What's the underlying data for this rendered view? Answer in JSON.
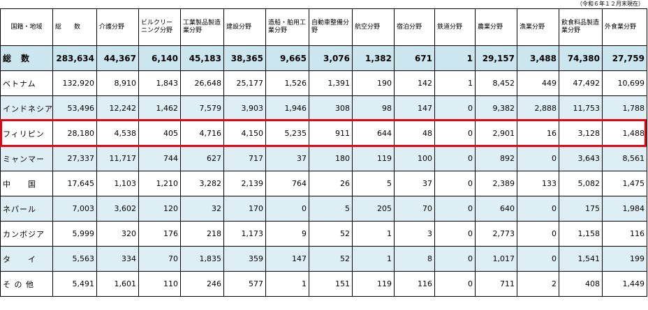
{
  "note": "（令和６年１２月末現在）",
  "headers": [
    "国籍・地域",
    "総　　数",
    "介護分野",
    "ビルクリーニング分野",
    "工業製品製造業分野",
    "建設分野",
    "造船・舶用工業分野",
    "自動車整備分野",
    "航空分野",
    "宿泊分野",
    "鉄道分野",
    "農業分野",
    "漁業分野",
    "飲食料品製造業分野",
    "外食業分野"
  ],
  "total": {
    "label": "総　数",
    "values": [
      "283,634",
      "44,367",
      "6,140",
      "45,183",
      "38,365",
      "9,665",
      "3,076",
      "1,382",
      "671",
      "1",
      "29,157",
      "3,488",
      "74,380",
      "27,759"
    ]
  },
  "rows": [
    {
      "label": "ベトナム",
      "values": [
        "132,920",
        "8,910",
        "1,843",
        "26,648",
        "25,177",
        "1,526",
        "1,391",
        "190",
        "142",
        "1",
        "8,452",
        "449",
        "47,492",
        "10,699"
      ]
    },
    {
      "label": "インドネシア",
      "values": [
        "53,496",
        "12,242",
        "1,462",
        "7,579",
        "3,903",
        "1,946",
        "308",
        "98",
        "147",
        "0",
        "9,382",
        "2,888",
        "11,753",
        "1,788"
      ]
    },
    {
      "label": "フィリピン",
      "values": [
        "28,180",
        "4,538",
        "405",
        "4,716",
        "4,150",
        "5,235",
        "911",
        "644",
        "48",
        "0",
        "2,901",
        "16",
        "3,128",
        "1,488"
      ]
    },
    {
      "label": "ミャンマー",
      "values": [
        "27,337",
        "11,717",
        "744",
        "627",
        "717",
        "37",
        "180",
        "119",
        "100",
        "0",
        "892",
        "0",
        "3,643",
        "8,561"
      ]
    },
    {
      "label": "中　　国",
      "values": [
        "17,645",
        "1,103",
        "1,210",
        "3,282",
        "2,139",
        "764",
        "26",
        "5",
        "37",
        "0",
        "2,389",
        "133",
        "5,082",
        "1,475"
      ]
    },
    {
      "label": "ネパール",
      "values": [
        "7,003",
        "3,602",
        "120",
        "32",
        "170",
        "0",
        "5",
        "205",
        "70",
        "0",
        "640",
        "0",
        "175",
        "1,984"
      ]
    },
    {
      "label": "カンボジア",
      "values": [
        "5,999",
        "320",
        "176",
        "218",
        "1,173",
        "9",
        "52",
        "1",
        "3",
        "0",
        "2,773",
        "0",
        "1,158",
        "116"
      ]
    },
    {
      "label": "タ　　イ",
      "values": [
        "5,563",
        "334",
        "70",
        "1,835",
        "359",
        "147",
        "52",
        "1",
        "8",
        "0",
        "1,017",
        "0",
        "1,541",
        "199"
      ]
    },
    {
      "label": "そ の 他",
      "values": [
        "5,491",
        "1,601",
        "110",
        "246",
        "577",
        "1",
        "151",
        "119",
        "116",
        "0",
        "711",
        "2",
        "408",
        "1,449"
      ]
    }
  ]
}
